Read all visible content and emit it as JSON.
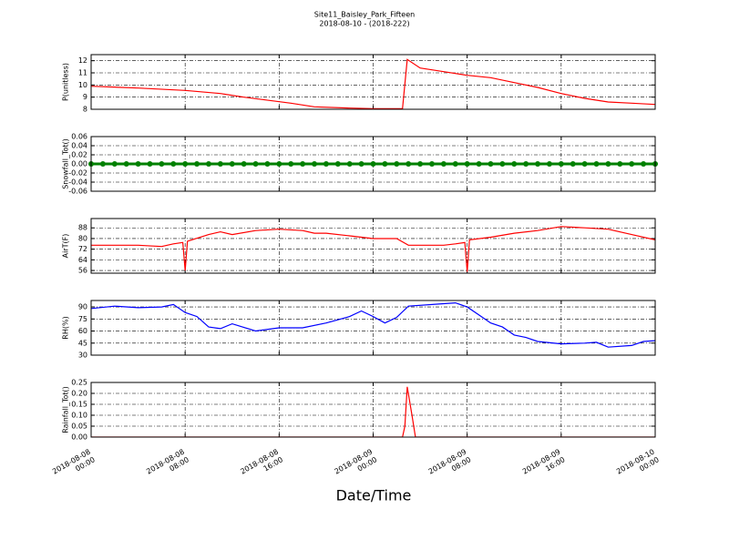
{
  "title": "Site11_Baisley_Park_Fifteen",
  "subtitle": "2018-08-10 - (2018-222)",
  "x_axis": {
    "label": "Date/Time",
    "xlim": [
      "2018-08-08 00:00",
      "2018-08-10 00:00"
    ],
    "xticks": [
      "2018-08-08 00:00",
      "2018-08-08 08:00",
      "2018-08-08 16:00",
      "2018-08-09 00:00",
      "2018-08-09 08:00",
      "2018-08-09 16:00",
      "2018-08-10 00:00"
    ]
  },
  "chart_data": [
    {
      "type": "line",
      "ylabel": "P(unitless)",
      "color": "#ff0000",
      "grid": true,
      "ylim": [
        8,
        12.5
      ],
      "yticks": [
        8,
        9,
        10,
        11,
        12
      ],
      "x": [
        "2018-08-08 00:00",
        "2018-08-08 04:00",
        "2018-08-08 08:00",
        "2018-08-08 11:00",
        "2018-08-08 13:00",
        "2018-08-08 17:00",
        "2018-08-08 19:00",
        "2018-08-08 22:00",
        "2018-08-09 00:00",
        "2018-08-09 02:30",
        "2018-08-09 02:54",
        "2018-08-09 04:00",
        "2018-08-09 06:00",
        "2018-08-09 08:00",
        "2018-08-09 10:00",
        "2018-08-09 12:00",
        "2018-08-09 14:00",
        "2018-08-09 16:00",
        "2018-08-09 18:00",
        "2018-08-09 20:00",
        "2018-08-09 22:00",
        "2018-08-10 00:00"
      ],
      "values": [
        9.9,
        9.75,
        9.55,
        9.3,
        9.0,
        8.5,
        8.2,
        8.1,
        8.05,
        8.05,
        12.1,
        11.4,
        11.1,
        10.8,
        10.6,
        10.2,
        9.8,
        9.3,
        8.9,
        8.6,
        8.5,
        8.4
      ]
    },
    {
      "type": "line",
      "marker": "o",
      "ylabel": "Snowfall_Tot()",
      "color": "#008000",
      "grid": true,
      "ylim": [
        -0.06,
        0.06
      ],
      "yticks": [
        -0.06,
        -0.04,
        -0.02,
        {
          "value": 0,
          "label": "0.00"
        },
        0.02,
        0.04,
        0.06
      ],
      "x": [
        "2018-08-08 00:00",
        "2018-08-08 01:00",
        "2018-08-08 02:00",
        "2018-08-08 03:00",
        "2018-08-08 04:00",
        "2018-08-08 05:00",
        "2018-08-08 06:00",
        "2018-08-08 07:00",
        "2018-08-08 08:00",
        "2018-08-08 09:00",
        "2018-08-08 10:00",
        "2018-08-08 11:00",
        "2018-08-08 12:00",
        "2018-08-08 13:00",
        "2018-08-08 14:00",
        "2018-08-08 15:00",
        "2018-08-08 16:00",
        "2018-08-08 17:00",
        "2018-08-08 18:00",
        "2018-08-08 19:00",
        "2018-08-08 20:00",
        "2018-08-08 21:00",
        "2018-08-08 22:00",
        "2018-08-08 23:00",
        "2018-08-09 00:00",
        "2018-08-09 01:00",
        "2018-08-09 02:00",
        "2018-08-09 03:00",
        "2018-08-09 04:00",
        "2018-08-09 05:00",
        "2018-08-09 06:00",
        "2018-08-09 07:00",
        "2018-08-09 08:00",
        "2018-08-09 09:00",
        "2018-08-09 10:00",
        "2018-08-09 11:00",
        "2018-08-09 12:00",
        "2018-08-09 13:00",
        "2018-08-09 14:00",
        "2018-08-09 15:00",
        "2018-08-09 16:00",
        "2018-08-09 17:00",
        "2018-08-09 18:00",
        "2018-08-09 19:00",
        "2018-08-09 20:00",
        "2018-08-09 21:00",
        "2018-08-09 22:00",
        "2018-08-09 23:00",
        "2018-08-10 00:00"
      ],
      "values": [
        0,
        0,
        0,
        0,
        0,
        0,
        0,
        0,
        0,
        0,
        0,
        0,
        0,
        0,
        0,
        0,
        0,
        0,
        0,
        0,
        0,
        0,
        0,
        0,
        0,
        0,
        0,
        0,
        0,
        0,
        0,
        0,
        0,
        0,
        0,
        0,
        0,
        0,
        0,
        0,
        0,
        0,
        0,
        0,
        0,
        0,
        0,
        0,
        0
      ]
    },
    {
      "type": "line",
      "ylabel": "AirT(F)",
      "color": "#ff0000",
      "grid": true,
      "ylim": [
        54,
        95
      ],
      "yticks": [
        56,
        64,
        72,
        80,
        88
      ],
      "x": [
        "2018-08-08 00:00",
        "2018-08-08 02:00",
        "2018-08-08 04:00",
        "2018-08-08 06:00",
        "2018-08-08 07:00",
        "2018-08-08 07:48",
        "2018-08-08 08:00",
        "2018-08-08 08:12",
        "2018-08-08 10:00",
        "2018-08-08 11:00",
        "2018-08-08 12:00",
        "2018-08-08 14:00",
        "2018-08-08 16:00",
        "2018-08-08 18:00",
        "2018-08-08 19:00",
        "2018-08-08 20:00",
        "2018-08-08 22:00",
        "2018-08-09 00:00",
        "2018-08-09 02:00",
        "2018-08-09 03:00",
        "2018-08-09 06:00",
        "2018-08-09 07:00",
        "2018-08-09 07:48",
        "2018-08-09 08:00",
        "2018-08-09 08:12",
        "2018-08-09 10:00",
        "2018-08-09 12:00",
        "2018-08-09 14:00",
        "2018-08-09 16:00",
        "2018-08-09 18:00",
        "2018-08-09 20:00",
        "2018-08-09 22:00",
        "2018-08-10 00:00"
      ],
      "values": [
        75,
        75,
        75,
        74,
        76,
        77,
        56,
        78,
        83,
        85,
        83,
        86,
        87,
        86,
        84,
        84,
        82,
        80,
        80,
        75,
        75,
        76,
        77,
        55,
        79,
        81,
        84,
        86,
        89,
        88,
        87,
        83,
        79
      ]
    },
    {
      "type": "line",
      "ylabel": "RH(%)",
      "color": "#0000ff",
      "grid": true,
      "ylim": [
        30,
        98
      ],
      "yticks": [
        30,
        45,
        60,
        75,
        90
      ],
      "x": [
        "2018-08-08 00:00",
        "2018-08-08 02:00",
        "2018-08-08 04:00",
        "2018-08-08 06:00",
        "2018-08-08 07:00",
        "2018-08-08 08:00",
        "2018-08-08 09:00",
        "2018-08-08 10:00",
        "2018-08-08 11:00",
        "2018-08-08 12:00",
        "2018-08-08 14:00",
        "2018-08-08 16:00",
        "2018-08-08 18:00",
        "2018-08-08 20:00",
        "2018-08-08 22:00",
        "2018-08-08 23:00",
        "2018-08-09 00:00",
        "2018-08-09 01:00",
        "2018-08-09 02:00",
        "2018-08-09 03:00",
        "2018-08-09 06:00",
        "2018-08-09 07:00",
        "2018-08-09 08:00",
        "2018-08-09 09:00",
        "2018-08-09 10:00",
        "2018-08-09 11:00",
        "2018-08-09 12:00",
        "2018-08-09 13:00",
        "2018-08-09 14:00",
        "2018-08-09 16:00",
        "2018-08-09 18:00",
        "2018-08-09 19:00",
        "2018-08-09 20:00",
        "2018-08-09 22:00",
        "2018-08-09 23:00",
        "2018-08-10 00:00"
      ],
      "values": [
        88,
        91,
        89,
        90,
        93,
        83,
        78,
        65,
        63,
        69,
        60,
        64,
        64,
        70,
        78,
        85,
        78,
        70,
        77,
        91,
        94,
        95,
        90,
        80,
        70,
        65,
        55,
        52,
        47,
        44,
        45,
        46,
        40,
        42,
        47,
        48
      ]
    },
    {
      "type": "line",
      "ylabel": "Rainfall_Tot()",
      "color": "#ff0000",
      "grid": true,
      "ylim": [
        0,
        0.25
      ],
      "yticks": [
        {
          "value": 0,
          "label": "0.00"
        },
        0.05,
        {
          "value": 0.1,
          "label": "0.10"
        },
        0.15,
        {
          "value": 0.2,
          "label": "0.20"
        },
        0.25
      ],
      "x": [
        "2018-08-08 00:00",
        "2018-08-09 02:30",
        "2018-08-09 02:42",
        "2018-08-09 02:54",
        "2018-08-09 03:18",
        "2018-08-09 03:36",
        "2018-08-10 00:00"
      ],
      "values": [
        0,
        0,
        0.05,
        0.23,
        0.1,
        0,
        0
      ]
    }
  ]
}
